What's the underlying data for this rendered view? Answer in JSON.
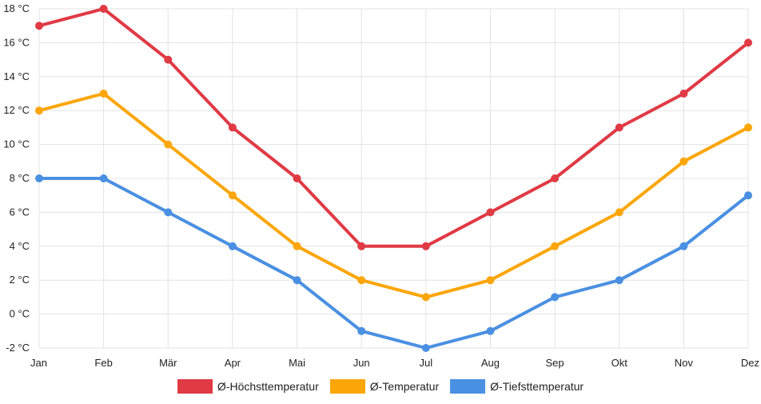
{
  "chart_data": {
    "type": "line",
    "title": "",
    "xlabel": "",
    "ylabel": "",
    "categories": [
      "Jan",
      "Feb",
      "Mär",
      "Apr",
      "Mai",
      "Jun",
      "Jul",
      "Aug",
      "Sep",
      "Okt",
      "Nov",
      "Dez"
    ],
    "ylim": [
      -2,
      18
    ],
    "yticks": [
      -2,
      0,
      2,
      4,
      6,
      8,
      10,
      12,
      14,
      16,
      18
    ],
    "yunit": " °C",
    "grid": true,
    "legend_position": "bottom",
    "series": [
      {
        "name": "Ø-Höchsttemperatur",
        "color": "#e03a45",
        "values": [
          17,
          18,
          15,
          11,
          8,
          4,
          4,
          6,
          8,
          11,
          13,
          16
        ]
      },
      {
        "name": "Ø-Temperatur",
        "color": "#fca60a",
        "values": [
          12,
          13,
          10,
          7,
          4,
          2,
          1,
          2,
          4,
          6,
          9,
          11
        ]
      },
      {
        "name": "Ø-Tiefsttemperatur",
        "color": "#4a90e2",
        "values": [
          8,
          8,
          6,
          4,
          2,
          -1,
          -2,
          -1,
          1,
          2,
          4,
          7
        ]
      }
    ]
  }
}
